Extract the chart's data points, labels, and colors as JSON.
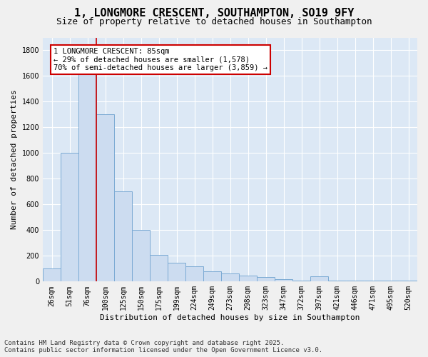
{
  "title_line1": "1, LONGMORE CRESCENT, SOUTHAMPTON, SO19 9FY",
  "title_line2": "Size of property relative to detached houses in Southampton",
  "xlabel": "Distribution of detached houses by size in Southampton",
  "ylabel": "Number of detached properties",
  "categories": [
    "26sqm",
    "51sqm",
    "76sqm",
    "100sqm",
    "125sqm",
    "150sqm",
    "175sqm",
    "199sqm",
    "224sqm",
    "249sqm",
    "273sqm",
    "298sqm",
    "323sqm",
    "347sqm",
    "372sqm",
    "397sqm",
    "421sqm",
    "446sqm",
    "471sqm",
    "495sqm",
    "520sqm"
  ],
  "values": [
    100,
    1000,
    1750,
    1300,
    700,
    400,
    210,
    145,
    120,
    80,
    65,
    45,
    35,
    20,
    5,
    40,
    5,
    5,
    5,
    5,
    5
  ],
  "bar_color": "#ccdcf0",
  "bar_edge_color": "#7baad4",
  "vline_color": "#cc0000",
  "annotation_text": "1 LONGMORE CRESCENT: 85sqm\n← 29% of detached houses are smaller (1,578)\n70% of semi-detached houses are larger (3,859) →",
  "annotation_box_facecolor": "#ffffff",
  "annotation_box_edgecolor": "#cc0000",
  "ylim": [
    0,
    1900
  ],
  "yticks": [
    0,
    200,
    400,
    600,
    800,
    1000,
    1200,
    1400,
    1600,
    1800
  ],
  "bg_color": "#dce8f5",
  "fig_facecolor": "#f0f0f0",
  "footnote": "Contains HM Land Registry data © Crown copyright and database right 2025.\nContains public sector information licensed under the Open Government Licence v3.0.",
  "title_fontsize": 11,
  "subtitle_fontsize": 9,
  "axis_label_fontsize": 8,
  "tick_fontsize": 7,
  "annotation_fontsize": 7.5,
  "footnote_fontsize": 6.5
}
